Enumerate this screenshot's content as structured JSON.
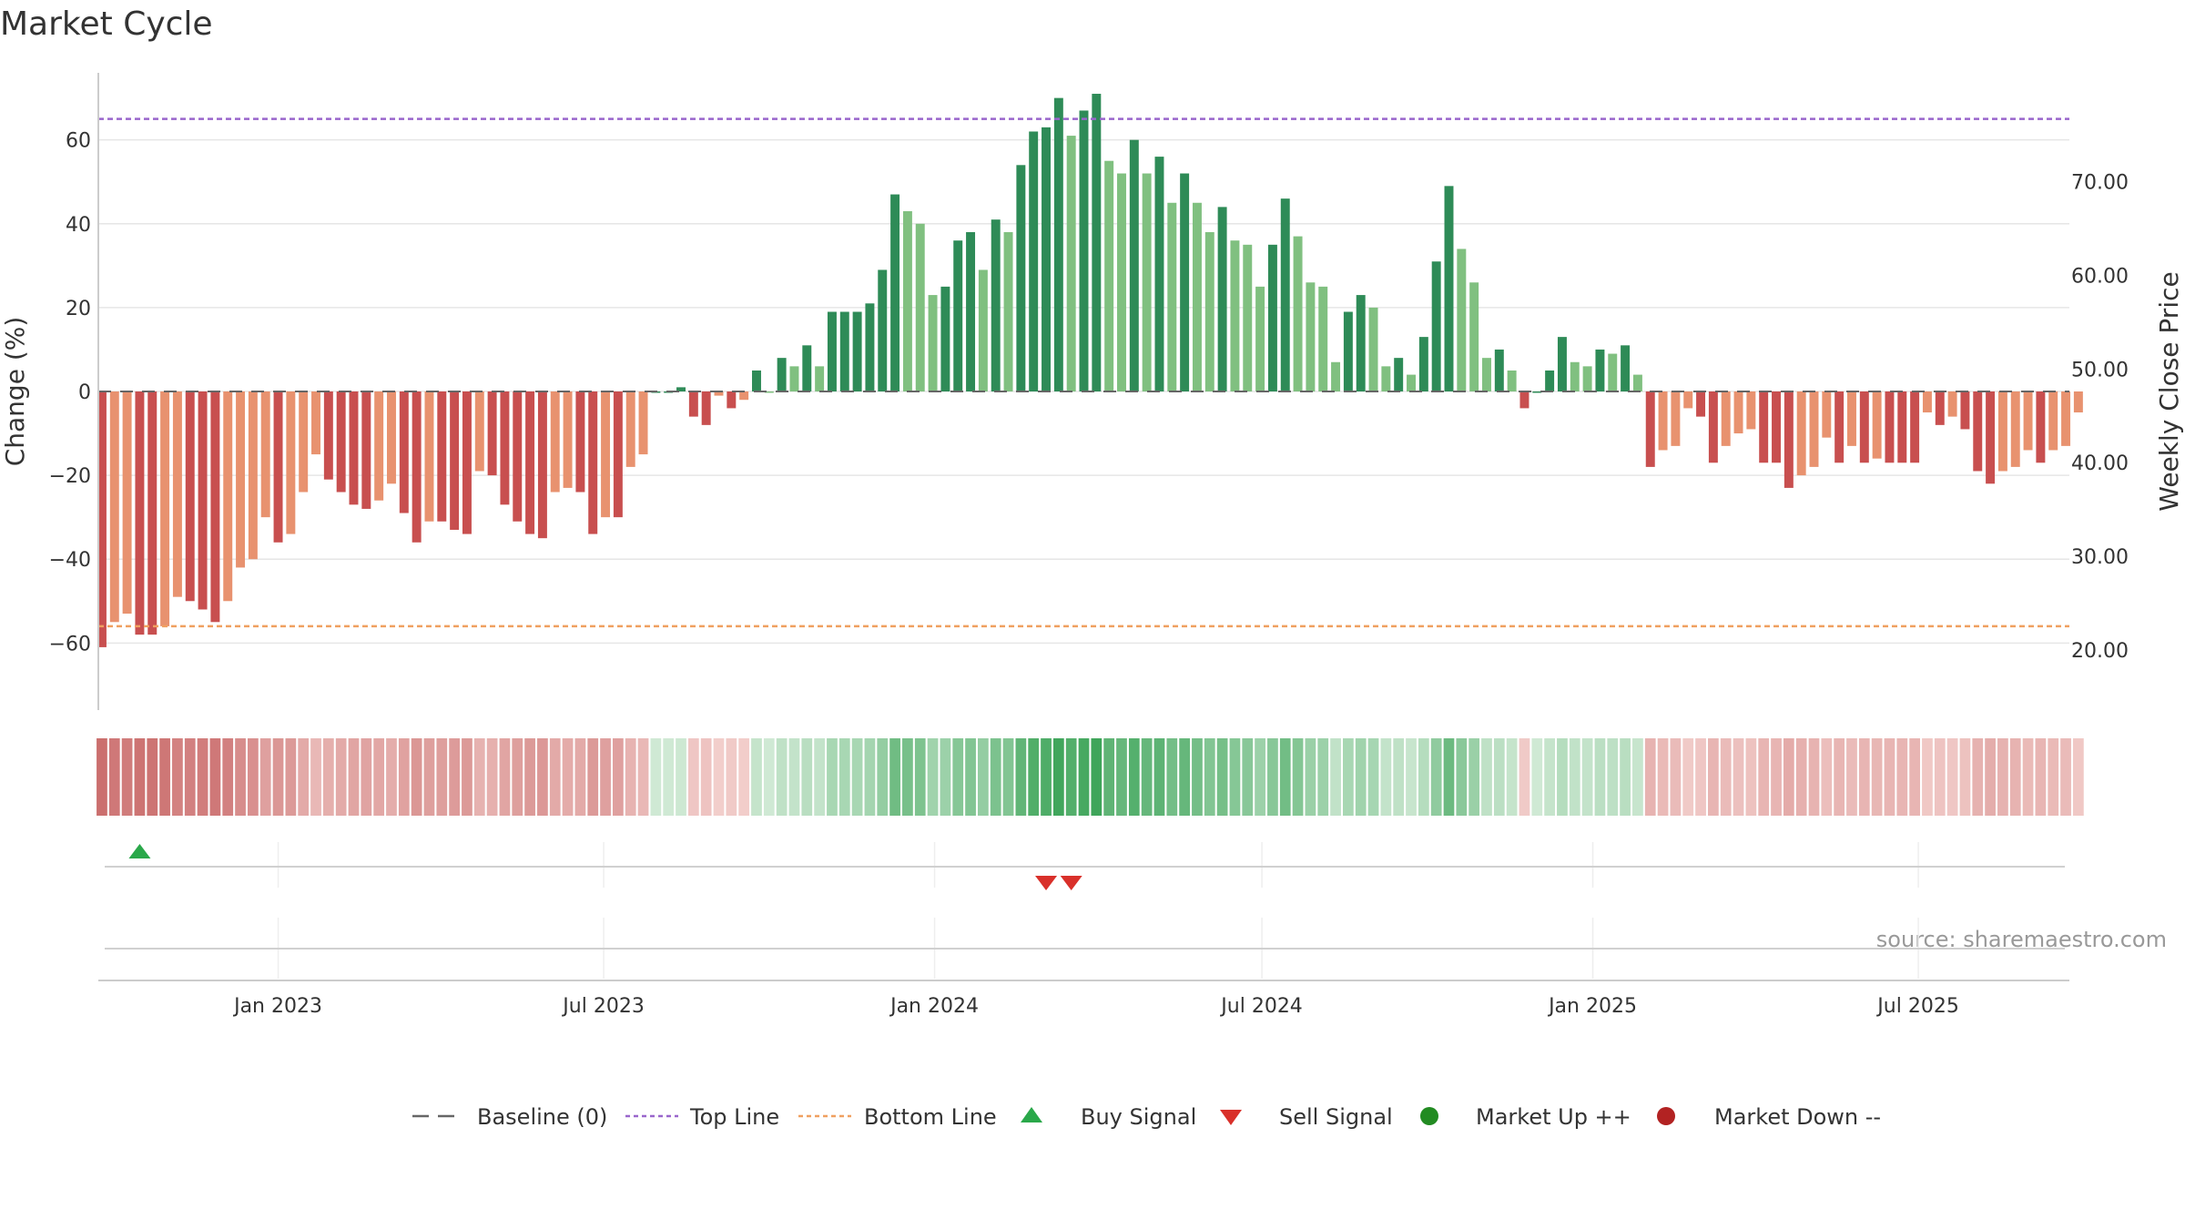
{
  "chart_data": {
    "type": "bar",
    "title": "Market Cycle",
    "ylabel": "Change (%)",
    "y2label": "Weekly Close Price",
    "source": "source: sharemaestro.com",
    "ylim": [
      -76,
      76
    ],
    "y2lim": [
      13.6,
      81.6
    ],
    "yticks": [
      -60,
      -40,
      -20,
      0,
      20,
      40,
      60
    ],
    "ytick_labels": [
      "−60",
      "−40",
      "−20",
      "0",
      "20",
      "40",
      "60"
    ],
    "y2ticks": [
      20,
      30,
      40,
      50,
      60,
      70
    ],
    "y2tick_labels": [
      "20.00",
      "30.00",
      "40.00",
      "50.00",
      "60.00",
      "70.00"
    ],
    "x_start": "2022-09-23",
    "x_end": "2025-09-23",
    "xticks": [
      {
        "date": "2023-01-01",
        "label": "Jan 2023"
      },
      {
        "date": "2023-07-01",
        "label": "Jul 2023"
      },
      {
        "date": "2024-01-01",
        "label": "Jan 2024"
      },
      {
        "date": "2024-07-01",
        "label": "Jul 2024"
      },
      {
        "date": "2025-01-01",
        "label": "Jan 2025"
      },
      {
        "date": "2025-07-01",
        "label": "Jul 2025"
      }
    ],
    "first_bar_date": "2022-09-25",
    "bar_interval_days": 7,
    "top_line": 65,
    "bottom_line": -56,
    "grid": true,
    "legend_position": "bottom",
    "series": [
      {
        "name": "Change (%)",
        "values": [
          -61,
          -55,
          -53,
          -58,
          -58,
          -56,
          -49,
          -50,
          -52,
          -55,
          -50,
          -42,
          -40,
          -30,
          -36,
          -34,
          -24,
          -15,
          -21,
          -24,
          -27,
          -28,
          -26,
          -22,
          -29,
          -36,
          -31,
          -31,
          -33,
          -34,
          -19,
          -20,
          -27,
          -31,
          -34,
          -35,
          -24,
          -23,
          -24,
          -34,
          -30,
          -30,
          -18,
          -15,
          0,
          0,
          1,
          -6,
          -8,
          -1,
          -4,
          -2,
          5,
          0,
          8,
          6,
          11,
          6,
          19,
          19,
          19,
          21,
          29,
          47,
          43,
          40,
          23,
          25,
          36,
          38,
          29,
          41,
          38,
          54,
          62,
          63,
          70,
          61,
          67,
          71,
          55,
          52,
          60,
          52,
          56,
          45,
          52,
          45,
          38,
          44,
          36,
          35,
          25,
          35,
          46,
          37,
          26,
          25,
          7,
          19,
          23,
          20,
          6,
          8,
          4,
          13,
          31,
          49,
          34,
          26,
          8,
          10,
          5,
          -4,
          0,
          5,
          13,
          7,
          6,
          10,
          9,
          11,
          4,
          -18,
          -14,
          -13,
          -4,
          -6,
          -17,
          -13,
          -10,
          -9,
          -17,
          -17,
          -23,
          -20,
          -18,
          -11,
          -17,
          -13,
          -17,
          -16,
          -17,
          -17,
          -17,
          -5,
          -8,
          -6,
          -9,
          -19,
          -22,
          -19,
          -18,
          -14,
          -17,
          -14,
          -13,
          -5
        ],
        "colors": [
          "#c84f4f",
          "#e8926f",
          "#2e8b57",
          "#80c080"
        ]
      }
    ],
    "heatmap_colors": {
      "red_full": "#c45f5f",
      "red_light": "#f3d0cd",
      "green_light": "#cfe9d4",
      "green_full": "#3fa55a"
    },
    "signals": [
      {
        "type": "buy",
        "date": "2022-10-16",
        "label": "Buy Signal"
      },
      {
        "type": "sell",
        "date": "2024-03-03",
        "label": "Sell Signal"
      },
      {
        "type": "sell",
        "date": "2024-03-17",
        "label": "Sell Signal"
      }
    ],
    "legend": [
      {
        "key": "baseline",
        "label": "Baseline (0)",
        "color": "#666666"
      },
      {
        "key": "top",
        "label": "Top Line",
        "color": "#9966cc"
      },
      {
        "key": "bottom",
        "label": "Bottom Line",
        "color": "#f0a060"
      },
      {
        "key": "buy",
        "label": "Buy Signal",
        "color": "#2aa84a"
      },
      {
        "key": "sell",
        "label": "Sell Signal",
        "color": "#d9302a"
      },
      {
        "key": "up",
        "label": "Market Up ++",
        "color": "#228b22"
      },
      {
        "key": "down",
        "label": "Market Down --",
        "color": "#b22222"
      }
    ]
  }
}
